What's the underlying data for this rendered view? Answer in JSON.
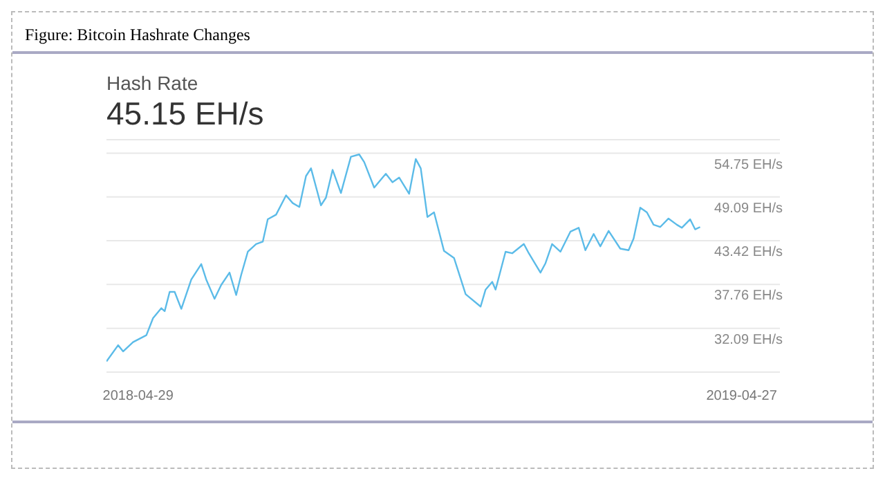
{
  "chart_data": {
    "type": "line",
    "title": "Hash Rate",
    "subtitle": "45.15 EH/s",
    "annotations": [
      "Figure: Bitcoin Hashrate Changes"
    ],
    "x": [
      "2018-04-10",
      "2018-04-17",
      "2018-04-20",
      "2018-04-26",
      "2018-05-04",
      "2018-05-08",
      "2018-05-13",
      "2018-05-15",
      "2018-05-18",
      "2018-05-21",
      "2018-05-25",
      "2018-05-31",
      "2018-06-06",
      "2018-06-09",
      "2018-06-14",
      "2018-06-18",
      "2018-06-23",
      "2018-06-27",
      "2018-06-30",
      "2018-07-04",
      "2018-07-09",
      "2018-07-13",
      "2018-07-16",
      "2018-07-21",
      "2018-07-27",
      "2018-07-31",
      "2018-08-04",
      "2018-08-08",
      "2018-08-11",
      "2018-08-17",
      "2018-08-20",
      "2018-08-24",
      "2018-08-29",
      "2018-09-04",
      "2018-09-09",
      "2018-09-12",
      "2018-09-18",
      "2018-09-25",
      "2018-09-29",
      "2018-10-03",
      "2018-10-09",
      "2018-10-13",
      "2018-10-16",
      "2018-10-20",
      "2018-10-24",
      "2018-10-30",
      "2018-11-05",
      "2018-11-12",
      "2018-11-21",
      "2018-11-24",
      "2018-11-28",
      "2018-11-30",
      "2018-12-06",
      "2018-12-10",
      "2018-12-17",
      "2018-12-20",
      "2018-12-27",
      "2018-12-30",
      "2019-01-03",
      "2019-01-08",
      "2019-01-14",
      "2019-01-19",
      "2019-01-23",
      "2019-01-28",
      "2019-02-01",
      "2019-02-06",
      "2019-02-13",
      "2019-02-18",
      "2019-02-21",
      "2019-02-25",
      "2019-03-01",
      "2019-03-05",
      "2019-03-09",
      "2019-03-14",
      "2019-03-19",
      "2019-03-22",
      "2019-03-27",
      "2019-03-30",
      "2019-04-02"
    ],
    "series": [
      {
        "color": "#5bbbe8",
        "values": [
          27.8,
          29.9,
          29.1,
          30.3,
          31.2,
          33.4,
          34.7,
          34.3,
          36.8,
          36.8,
          34.6,
          38.4,
          40.4,
          38.4,
          35.9,
          37.7,
          39.3,
          36.4,
          39.0,
          42.0,
          43.0,
          43.3,
          46.2,
          46.8,
          49.3,
          48.3,
          47.8,
          51.8,
          52.8,
          48.0,
          49.0,
          52.6,
          49.6,
          54.3,
          54.6,
          53.6,
          50.3,
          52.1,
          51.0,
          51.6,
          49.5,
          54.0,
          52.8,
          46.5,
          47.1,
          42.1,
          41.2,
          36.5,
          34.9,
          37.1,
          38.1,
          37.1,
          42.0,
          41.8,
          43.0,
          41.8,
          39.3,
          40.5,
          43.0,
          42.0,
          44.6,
          45.1,
          42.2,
          44.3,
          42.7,
          44.7,
          42.4,
          42.2,
          43.7,
          47.7,
          47.1,
          45.5,
          45.2,
          46.3,
          45.5,
          45.1,
          46.2,
          44.9,
          45.2
        ]
      }
    ],
    "xlim": [
      "2018-04-10",
      "2019-05-20"
    ],
    "xticks": [
      {
        "value": "2018-04-29",
        "label": "2018-04-29"
      },
      {
        "value": "2019-04-27",
        "label": "2019-04-27"
      }
    ],
    "ylim": [
      26.42,
      56.5
    ],
    "yticks": [
      {
        "value": 26.42,
        "label": null
      },
      {
        "value": 32.09,
        "label": "32.09 EH/s"
      },
      {
        "value": 37.76,
        "label": "37.76 EH/s"
      },
      {
        "value": 43.42,
        "label": "43.42 EH/s"
      },
      {
        "value": 49.09,
        "label": "49.09 EH/s"
      },
      {
        "value": 54.75,
        "label": "54.75 EH/s"
      }
    ],
    "grid": "y",
    "legend": false,
    "marker": "none",
    "line_style": "solid"
  }
}
